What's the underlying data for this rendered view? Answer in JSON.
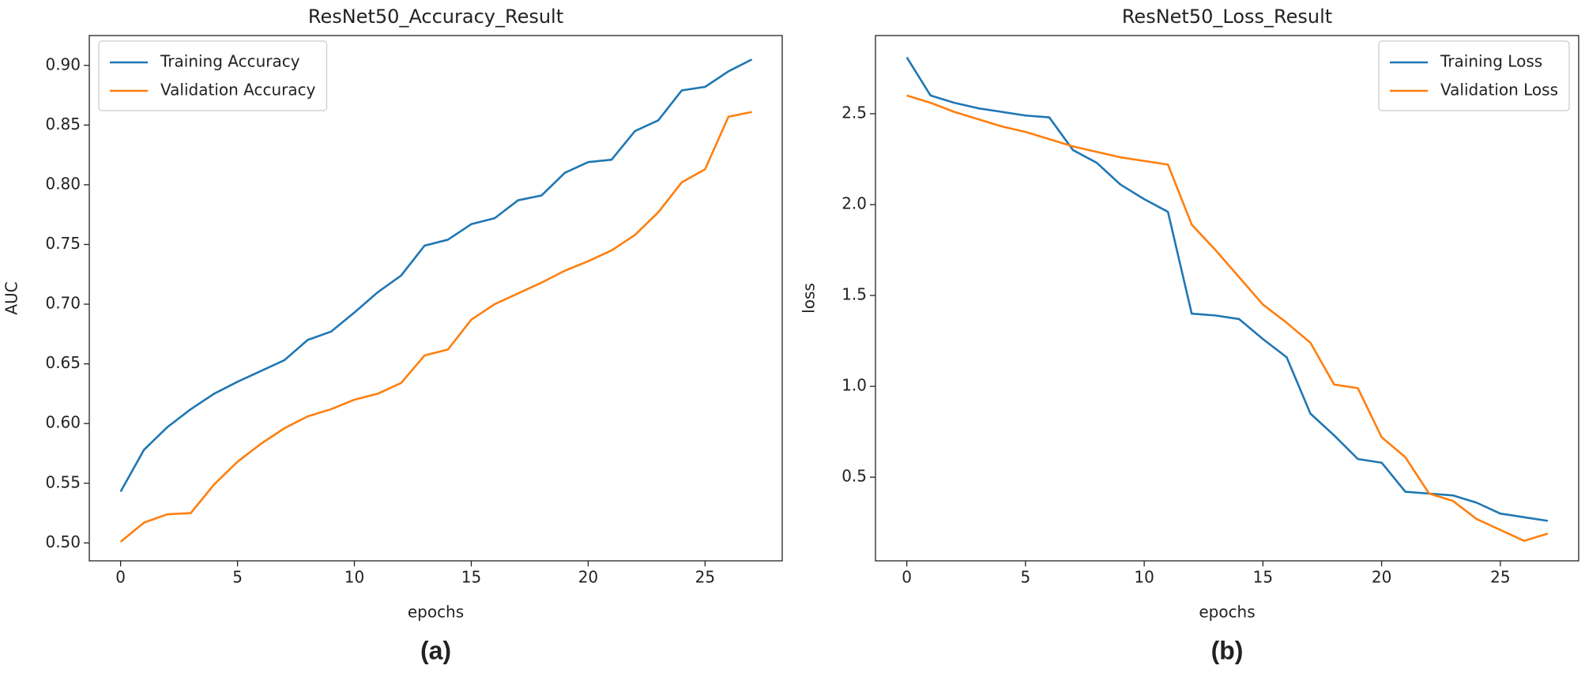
{
  "chart_data": [
    {
      "type": "line",
      "title": "ResNet50_Accuracy_Result",
      "x_label": "epochs",
      "y_label": "AUC",
      "caption": "(a)",
      "x": [
        0,
        1,
        2,
        3,
        4,
        5,
        6,
        7,
        8,
        9,
        10,
        11,
        12,
        13,
        14,
        15,
        16,
        17,
        18,
        19,
        20,
        21,
        22,
        23,
        24,
        25,
        26,
        27
      ],
      "series": [
        {
          "name": "Training Accuracy",
          "color": "#1f77b4",
          "values": [
            0.543,
            0.578,
            0.597,
            0.612,
            0.625,
            0.635,
            0.644,
            0.653,
            0.67,
            0.677,
            0.693,
            0.71,
            0.724,
            0.749,
            0.754,
            0.767,
            0.772,
            0.787,
            0.791,
            0.81,
            0.819,
            0.821,
            0.845,
            0.854,
            0.879,
            0.882,
            0.895,
            0.905
          ]
        },
        {
          "name": "Validation Accuracy",
          "color": "#ff7f0e",
          "values": [
            0.501,
            0.517,
            0.524,
            0.525,
            0.549,
            0.568,
            0.583,
            0.596,
            0.606,
            0.612,
            0.62,
            0.625,
            0.634,
            0.657,
            0.662,
            0.687,
            0.7,
            0.709,
            0.718,
            0.728,
            0.736,
            0.745,
            0.758,
            0.777,
            0.802,
            0.813,
            0.857,
            0.861
          ]
        }
      ],
      "xlim": [
        -1.34,
        28.3
      ],
      "xticks": [
        0,
        5,
        10,
        15,
        20,
        25
      ],
      "ylim": [
        0.485,
        0.925
      ],
      "yticks": [
        {
          "value": 0.5,
          "label": "0.50"
        },
        0.55,
        {
          "value": 0.6,
          "label": "0.60"
        },
        0.65,
        {
          "value": 0.7,
          "label": "0.70"
        },
        0.75,
        {
          "value": 0.8,
          "label": "0.80"
        },
        0.85,
        {
          "value": 0.9,
          "label": "0.90"
        }
      ],
      "legend": "upper left"
    },
    {
      "type": "line",
      "title": "ResNet50_Loss_Result",
      "x_label": "epochs",
      "y_label": "loss",
      "caption": "(b)",
      "x": [
        0,
        1,
        2,
        3,
        4,
        5,
        6,
        7,
        8,
        9,
        10,
        11,
        12,
        13,
        14,
        15,
        16,
        17,
        18,
        19,
        20,
        21,
        22,
        23,
        24,
        25,
        26,
        27
      ],
      "series": [
        {
          "name": "Training Loss",
          "color": "#1f77b4",
          "values": [
            2.81,
            2.6,
            2.56,
            2.53,
            2.51,
            2.49,
            2.48,
            2.3,
            2.23,
            2.11,
            2.03,
            1.96,
            1.4,
            1.39,
            1.37,
            1.26,
            1.16,
            0.85,
            0.73,
            0.6,
            0.58,
            0.42,
            0.41,
            0.4,
            0.36,
            0.3,
            0.28,
            0.26
          ]
        },
        {
          "name": "Validation Loss",
          "color": "#ff7f0e",
          "values": [
            2.6,
            2.56,
            2.51,
            2.47,
            2.43,
            2.4,
            2.36,
            2.32,
            2.29,
            2.26,
            2.24,
            2.22,
            1.89,
            1.75,
            1.6,
            1.45,
            1.35,
            1.24,
            1.01,
            0.99,
            0.72,
            0.61,
            0.41,
            0.37,
            0.27,
            0.21,
            0.15,
            0.19
          ]
        }
      ],
      "xlim": [
        -1.32,
        28.3
      ],
      "xticks": [
        0,
        5,
        10,
        15,
        20,
        25
      ],
      "ylim": [
        0.04,
        2.93
      ],
      "yticks": [
        0.5,
        {
          "value": 1,
          "label": "1.0"
        },
        1.5,
        {
          "value": 2,
          "label": "2.0"
        },
        2.5
      ],
      "legend": "upper right"
    }
  ]
}
